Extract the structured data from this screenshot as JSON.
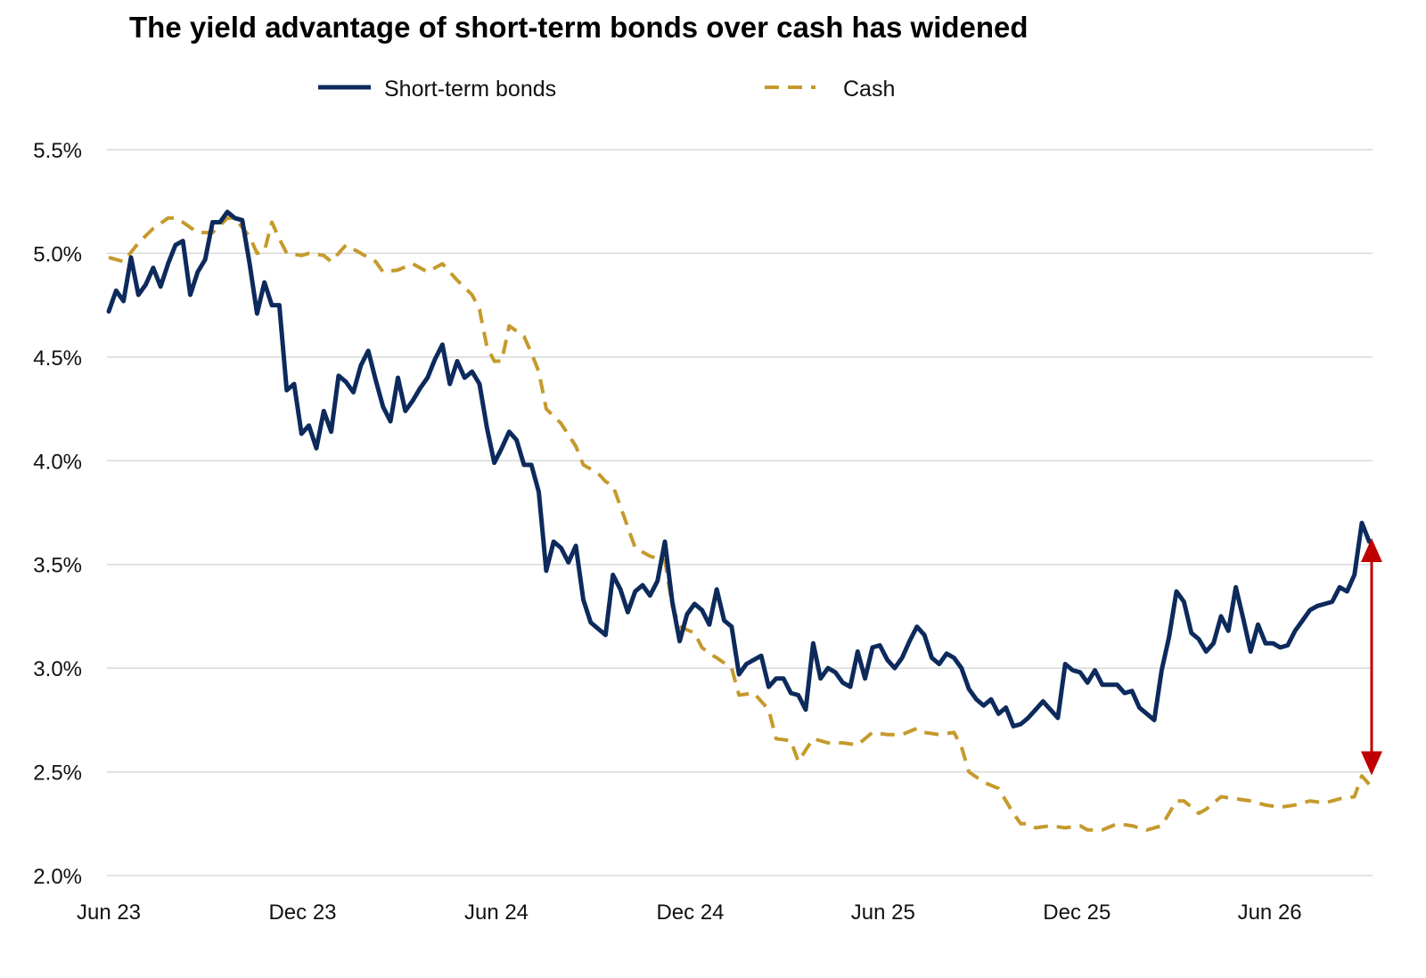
{
  "chart_data": {
    "type": "line",
    "title": "The yield advantage of short-term bonds over cash has widened",
    "xlabel": "",
    "ylabel": "",
    "x_ticks": [
      "Jun 23",
      "Dec 23",
      "Jun 24",
      "Dec 24",
      "Jun 25",
      "Dec 25",
      "Jun 26"
    ],
    "y_ticks": [
      "5.5%",
      "5.0%",
      "4.5%",
      "4.0%",
      "3.5%",
      "3.0%",
      "2.5%",
      "2.0%"
    ],
    "ylim": [
      2.0,
      5.5
    ],
    "xlim": [
      "2023-06",
      "2026-10"
    ],
    "grid": "horizontal",
    "legend": "top-center",
    "annotation": "red double-headed arrow marking the gap between short-term bonds and cash at the latest date",
    "colors": {
      "bonds": "#0d2a5c",
      "cash": "#c59a2c",
      "arrow": "#c00000",
      "grid": "#d9d9d9"
    },
    "series": [
      {
        "name": "Short-term bonds",
        "style": "solid",
        "points": [
          [
            "2023-06-01",
            4.72
          ],
          [
            "2023-06-08",
            4.82
          ],
          [
            "2023-06-15",
            4.77
          ],
          [
            "2023-06-22",
            4.98
          ],
          [
            "2023-06-29",
            4.8
          ],
          [
            "2023-07-06",
            4.85
          ],
          [
            "2023-07-13",
            4.93
          ],
          [
            "2023-07-20",
            4.84
          ],
          [
            "2023-07-27",
            4.95
          ],
          [
            "2023-08-03",
            5.04
          ],
          [
            "2023-08-10",
            5.06
          ],
          [
            "2023-08-17",
            4.8
          ],
          [
            "2023-08-24",
            4.91
          ],
          [
            "2023-08-31",
            4.97
          ],
          [
            "2023-09-07",
            5.15
          ],
          [
            "2023-09-14",
            5.15
          ],
          [
            "2023-09-21",
            5.2
          ],
          [
            "2023-09-28",
            5.17
          ],
          [
            "2023-10-05",
            5.16
          ],
          [
            "2023-10-12",
            4.95
          ],
          [
            "2023-10-19",
            4.71
          ],
          [
            "2023-10-26",
            4.86
          ],
          [
            "2023-11-02",
            4.75
          ],
          [
            "2023-11-09",
            4.75
          ],
          [
            "2023-11-16",
            4.34
          ],
          [
            "2023-11-23",
            4.37
          ],
          [
            "2023-11-30",
            4.13
          ],
          [
            "2023-12-07",
            4.17
          ],
          [
            "2023-12-14",
            4.06
          ],
          [
            "2023-12-21",
            4.24
          ],
          [
            "2023-12-28",
            4.14
          ],
          [
            "2024-01-04",
            4.41
          ],
          [
            "2024-01-11",
            4.38
          ],
          [
            "2024-01-18",
            4.33
          ],
          [
            "2024-01-25",
            4.46
          ],
          [
            "2024-02-01",
            4.53
          ],
          [
            "2024-02-08",
            4.39
          ],
          [
            "2024-02-15",
            4.26
          ],
          [
            "2024-02-22",
            4.19
          ],
          [
            "2024-02-29",
            4.4
          ],
          [
            "2024-03-07",
            4.24
          ],
          [
            "2024-03-14",
            4.29
          ],
          [
            "2024-03-21",
            4.35
          ],
          [
            "2024-03-28",
            4.4
          ],
          [
            "2024-04-04",
            4.49
          ],
          [
            "2024-04-11",
            4.56
          ],
          [
            "2024-04-18",
            4.37
          ],
          [
            "2024-04-25",
            4.48
          ],
          [
            "2024-05-02",
            4.4
          ],
          [
            "2024-05-09",
            4.43
          ],
          [
            "2024-05-16",
            4.37
          ],
          [
            "2024-05-23",
            4.16
          ],
          [
            "2024-05-30",
            3.99
          ],
          [
            "2024-06-06",
            4.06
          ],
          [
            "2024-06-13",
            4.14
          ],
          [
            "2024-06-20",
            4.1
          ],
          [
            "2024-06-27",
            3.98
          ],
          [
            "2024-07-04",
            3.98
          ],
          [
            "2024-07-11",
            3.85
          ],
          [
            "2024-07-18",
            3.47
          ],
          [
            "2024-07-25",
            3.61
          ],
          [
            "2024-08-01",
            3.58
          ],
          [
            "2024-08-08",
            3.51
          ],
          [
            "2024-08-15",
            3.59
          ],
          [
            "2024-08-22",
            3.33
          ],
          [
            "2024-08-29",
            3.22
          ],
          [
            "2024-09-05",
            3.19
          ],
          [
            "2024-09-12",
            3.16
          ],
          [
            "2024-09-19",
            3.45
          ],
          [
            "2024-09-26",
            3.38
          ],
          [
            "2024-10-03",
            3.27
          ],
          [
            "2024-10-10",
            3.37
          ],
          [
            "2024-10-17",
            3.4
          ],
          [
            "2024-10-24",
            3.35
          ],
          [
            "2024-10-31",
            3.42
          ],
          [
            "2024-11-07",
            3.61
          ],
          [
            "2024-11-14",
            3.32
          ],
          [
            "2024-11-21",
            3.13
          ],
          [
            "2024-11-28",
            3.26
          ],
          [
            "2024-12-05",
            3.31
          ],
          [
            "2024-12-12",
            3.28
          ],
          [
            "2024-12-19",
            3.21
          ],
          [
            "2024-12-26",
            3.38
          ],
          [
            "2025-01-02",
            3.23
          ],
          [
            "2025-01-09",
            3.2
          ],
          [
            "2025-01-16",
            2.97
          ],
          [
            "2025-01-23",
            3.02
          ],
          [
            "2025-01-30",
            3.04
          ],
          [
            "2025-02-06",
            3.06
          ],
          [
            "2025-02-13",
            2.91
          ],
          [
            "2025-02-20",
            2.95
          ],
          [
            "2025-02-27",
            2.95
          ],
          [
            "2025-03-06",
            2.88
          ],
          [
            "2025-03-13",
            2.87
          ],
          [
            "2025-03-20",
            2.8
          ],
          [
            "2025-03-27",
            3.12
          ],
          [
            "2025-04-03",
            2.95
          ],
          [
            "2025-04-10",
            3.0
          ],
          [
            "2025-04-17",
            2.98
          ],
          [
            "2025-04-24",
            2.93
          ],
          [
            "2025-05-01",
            2.91
          ],
          [
            "2025-05-08",
            3.08
          ],
          [
            "2025-05-15",
            2.95
          ],
          [
            "2025-05-22",
            3.1
          ],
          [
            "2025-05-29",
            3.11
          ],
          [
            "2025-06-05",
            3.04
          ],
          [
            "2025-06-12",
            3.0
          ],
          [
            "2025-06-19",
            3.05
          ],
          [
            "2025-06-26",
            3.13
          ],
          [
            "2025-07-03",
            3.2
          ],
          [
            "2025-07-10",
            3.16
          ],
          [
            "2025-07-17",
            3.05
          ],
          [
            "2025-07-24",
            3.02
          ],
          [
            "2025-07-31",
            3.07
          ],
          [
            "2025-08-07",
            3.05
          ],
          [
            "2025-08-14",
            3.0
          ],
          [
            "2025-08-21",
            2.9
          ],
          [
            "2025-08-28",
            2.85
          ],
          [
            "2025-09-04",
            2.82
          ],
          [
            "2025-09-11",
            2.85
          ],
          [
            "2025-09-18",
            2.78
          ],
          [
            "2025-09-25",
            2.81
          ],
          [
            "2025-10-02",
            2.72
          ],
          [
            "2025-10-09",
            2.73
          ],
          [
            "2025-10-16",
            2.76
          ],
          [
            "2025-10-23",
            2.8
          ],
          [
            "2025-10-30",
            2.84
          ],
          [
            "2025-11-06",
            2.8
          ],
          [
            "2025-11-13",
            2.76
          ],
          [
            "2025-11-20",
            3.02
          ],
          [
            "2025-11-27",
            2.99
          ],
          [
            "2025-12-04",
            2.98
          ],
          [
            "2025-12-11",
            2.93
          ],
          [
            "2025-12-18",
            2.99
          ],
          [
            "2025-12-25",
            2.92
          ],
          [
            "2026-01-01",
            2.92
          ],
          [
            "2026-01-08",
            2.92
          ],
          [
            "2026-01-15",
            2.88
          ],
          [
            "2026-01-22",
            2.89
          ],
          [
            "2026-01-29",
            2.81
          ],
          [
            "2026-02-05",
            2.78
          ],
          [
            "2026-02-12",
            2.75
          ],
          [
            "2026-02-19",
            2.99
          ],
          [
            "2026-02-26",
            3.15
          ],
          [
            "2026-03-05",
            3.37
          ],
          [
            "2026-03-12",
            3.32
          ],
          [
            "2026-03-19",
            3.17
          ],
          [
            "2026-03-26",
            3.14
          ],
          [
            "2026-04-02",
            3.08
          ],
          [
            "2026-04-09",
            3.12
          ],
          [
            "2026-04-16",
            3.25
          ],
          [
            "2026-04-23",
            3.18
          ],
          [
            "2026-04-30",
            3.39
          ],
          [
            "2026-05-07",
            3.24
          ],
          [
            "2026-05-14",
            3.08
          ],
          [
            "2026-05-21",
            3.21
          ],
          [
            "2026-05-28",
            3.12
          ],
          [
            "2026-06-04",
            3.12
          ],
          [
            "2026-06-11",
            3.1
          ],
          [
            "2026-06-18",
            3.11
          ],
          [
            "2026-06-25",
            3.18
          ],
          [
            "2026-07-02",
            3.23
          ],
          [
            "2026-07-09",
            3.28
          ],
          [
            "2026-07-16",
            3.3
          ],
          [
            "2026-07-23",
            3.31
          ],
          [
            "2026-07-30",
            3.32
          ],
          [
            "2026-08-06",
            3.39
          ],
          [
            "2026-08-13",
            3.37
          ],
          [
            "2026-08-20",
            3.45
          ],
          [
            "2026-08-27",
            3.7
          ],
          [
            "2026-09-03",
            3.61
          ]
        ]
      },
      {
        "name": "Cash",
        "style": "dashed",
        "points": [
          [
            "2023-06-01",
            4.98
          ],
          [
            "2023-06-15",
            4.96
          ],
          [
            "2023-06-29",
            5.05
          ],
          [
            "2023-07-13",
            5.12
          ],
          [
            "2023-07-27",
            5.17
          ],
          [
            "2023-08-03",
            5.17
          ],
          [
            "2023-08-10",
            5.15
          ],
          [
            "2023-08-24",
            5.1
          ],
          [
            "2023-09-07",
            5.1
          ],
          [
            "2023-09-21",
            5.17
          ],
          [
            "2023-09-28",
            5.17
          ],
          [
            "2023-10-12",
            5.08
          ],
          [
            "2023-10-19",
            5.0
          ],
          [
            "2023-10-26",
            5.01
          ],
          [
            "2023-11-02",
            5.15
          ],
          [
            "2023-11-09",
            5.07
          ],
          [
            "2023-11-16",
            5.0
          ],
          [
            "2023-11-30",
            4.99
          ],
          [
            "2023-12-07",
            5.0
          ],
          [
            "2023-12-21",
            4.99
          ],
          [
            "2023-12-28",
            4.96
          ],
          [
            "2024-01-11",
            5.04
          ],
          [
            "2024-01-25",
            5.0
          ],
          [
            "2024-02-08",
            4.96
          ],
          [
            "2024-02-15",
            4.91
          ],
          [
            "2024-02-29",
            4.92
          ],
          [
            "2024-03-14",
            4.95
          ],
          [
            "2024-03-28",
            4.91
          ],
          [
            "2024-04-11",
            4.95
          ],
          [
            "2024-04-25",
            4.87
          ],
          [
            "2024-05-09",
            4.8
          ],
          [
            "2024-05-16",
            4.73
          ],
          [
            "2024-05-23",
            4.55
          ],
          [
            "2024-05-30",
            4.48
          ],
          [
            "2024-06-06",
            4.48
          ],
          [
            "2024-06-13",
            4.65
          ],
          [
            "2024-06-27",
            4.6
          ],
          [
            "2024-07-04",
            4.52
          ],
          [
            "2024-07-11",
            4.43
          ],
          [
            "2024-07-18",
            4.25
          ],
          [
            "2024-08-01",
            4.18
          ],
          [
            "2024-08-15",
            4.07
          ],
          [
            "2024-08-22",
            3.98
          ],
          [
            "2024-09-05",
            3.94
          ],
          [
            "2024-09-12",
            3.9
          ],
          [
            "2024-09-19",
            3.88
          ],
          [
            "2024-09-26",
            3.78
          ],
          [
            "2024-10-03",
            3.68
          ],
          [
            "2024-10-10",
            3.58
          ],
          [
            "2024-10-24",
            3.54
          ],
          [
            "2024-11-07",
            3.52
          ],
          [
            "2024-11-14",
            3.3
          ],
          [
            "2024-11-21",
            3.2
          ],
          [
            "2024-12-05",
            3.17
          ],
          [
            "2024-12-12",
            3.1
          ],
          [
            "2024-12-19",
            3.07
          ],
          [
            "2024-12-26",
            3.05
          ],
          [
            "2025-01-09",
            3.0
          ],
          [
            "2025-01-16",
            2.87
          ],
          [
            "2025-01-30",
            2.88
          ],
          [
            "2025-02-13",
            2.8
          ],
          [
            "2025-02-20",
            2.66
          ],
          [
            "2025-03-06",
            2.65
          ],
          [
            "2025-03-13",
            2.55
          ],
          [
            "2025-03-27",
            2.66
          ],
          [
            "2025-04-10",
            2.64
          ],
          [
            "2025-04-24",
            2.64
          ],
          [
            "2025-05-08",
            2.63
          ],
          [
            "2025-05-22",
            2.69
          ],
          [
            "2025-06-05",
            2.68
          ],
          [
            "2025-06-19",
            2.68
          ],
          [
            "2025-07-03",
            2.71
          ],
          [
            "2025-07-10",
            2.69
          ],
          [
            "2025-07-24",
            2.68
          ],
          [
            "2025-08-07",
            2.69
          ],
          [
            "2025-08-14",
            2.62
          ],
          [
            "2025-08-21",
            2.5
          ],
          [
            "2025-09-04",
            2.45
          ],
          [
            "2025-09-18",
            2.42
          ],
          [
            "2025-10-02",
            2.3
          ],
          [
            "2025-10-09",
            2.25
          ],
          [
            "2025-10-16",
            2.25
          ],
          [
            "2025-10-23",
            2.23
          ],
          [
            "2025-11-06",
            2.24
          ],
          [
            "2025-11-20",
            2.23
          ],
          [
            "2025-12-04",
            2.24
          ],
          [
            "2025-12-11",
            2.22
          ],
          [
            "2025-12-25",
            2.22
          ],
          [
            "2026-01-08",
            2.25
          ],
          [
            "2026-01-22",
            2.24
          ],
          [
            "2026-02-05",
            2.22
          ],
          [
            "2026-02-19",
            2.24
          ],
          [
            "2026-03-05",
            2.36
          ],
          [
            "2026-03-12",
            2.36
          ],
          [
            "2026-03-26",
            2.3
          ],
          [
            "2026-04-02",
            2.32
          ],
          [
            "2026-04-16",
            2.38
          ],
          [
            "2026-04-30",
            2.37
          ],
          [
            "2026-05-14",
            2.36
          ],
          [
            "2026-05-28",
            2.34
          ],
          [
            "2026-06-11",
            2.33
          ],
          [
            "2026-06-25",
            2.34
          ],
          [
            "2026-07-09",
            2.36
          ],
          [
            "2026-07-23",
            2.35
          ],
          [
            "2026-08-06",
            2.37
          ],
          [
            "2026-08-20",
            2.38
          ],
          [
            "2026-08-27",
            2.48
          ],
          [
            "2026-09-03",
            2.44
          ]
        ]
      }
    ]
  }
}
